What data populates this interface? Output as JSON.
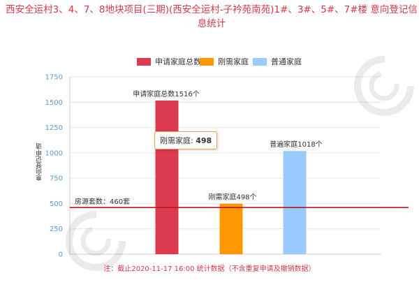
{
  "title": "西安全运村3、4、7、8地块项目(三期)(西安全运村-子衿苑南苑)1#、3#、5#、7#楼 意向登记信息统计",
  "note": "注：截止2020-11-17 16:00 统计数据（不含重复申请及撤销数据）",
  "tooltip": {
    "label": "刚需家庭: ",
    "value": "498"
  },
  "colors": {
    "title": "#d23a4a",
    "axis": "#5b9bd5",
    "line": "#c0141e"
  },
  "chart_data": {
    "type": "bar",
    "title": "",
    "xlabel": "",
    "ylabel": "意向登记申请",
    "ylim": [
      0,
      1750
    ],
    "yticks": [
      "0",
      "250",
      "500",
      "750",
      "1000",
      "1250",
      "1500",
      "1750"
    ],
    "grid": true,
    "legend_position": "top",
    "series": [
      {
        "name": "申请家庭总数",
        "value": 1516,
        "label": "申请家庭总数1516个",
        "color": "#dc3a4e"
      },
      {
        "name": "刚需家庭",
        "value": 498,
        "label": "刚需家庭498个",
        "color": "#ff9800"
      },
      {
        "name": "普通家庭",
        "value": 1018,
        "label": "普遍家庭1018个",
        "color": "#99cbff"
      }
    ],
    "reference_line": {
      "value": 460,
      "label": "房源套数：460套"
    }
  }
}
